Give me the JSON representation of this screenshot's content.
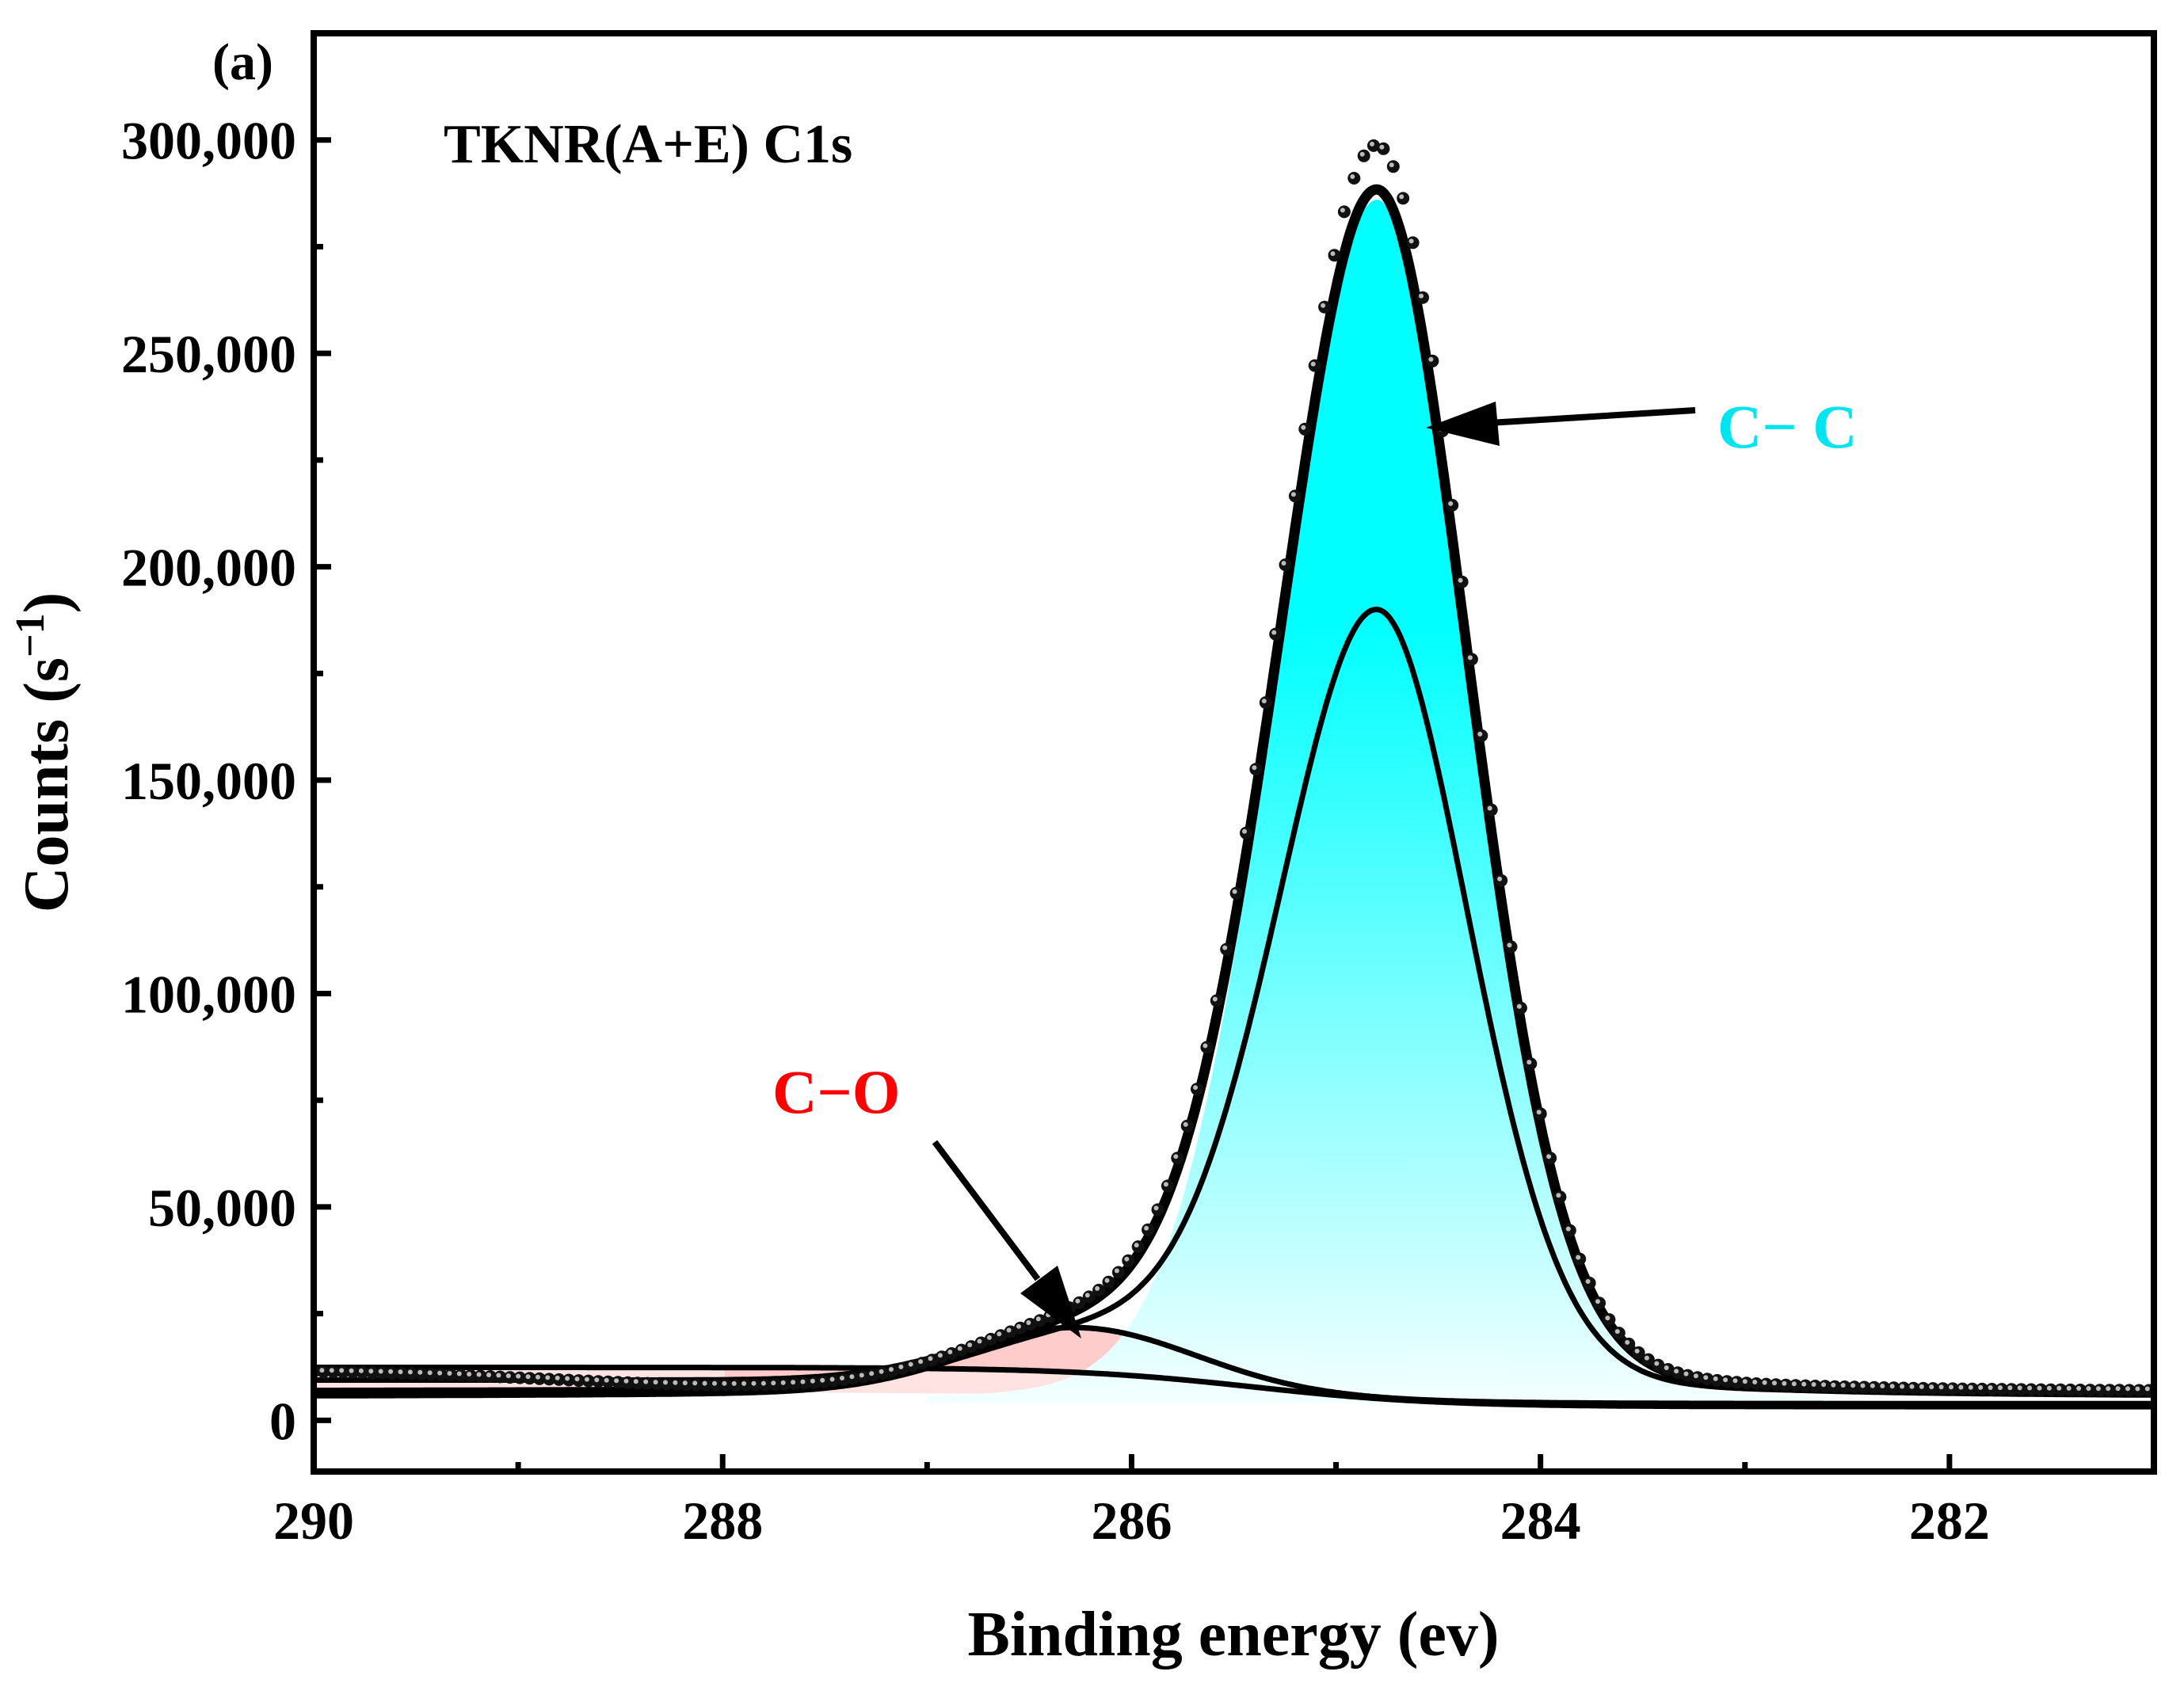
{
  "panel_label": "(a)",
  "chart_data": {
    "type": "line",
    "title": "TKNR(A+E) C1s",
    "xlabel": "Binding energy (ev)",
    "ylabel_main": "Counts (s",
    "ylabel_sup": "−1",
    "ylabel_close": ")",
    "xlim": [
      290,
      281
    ],
    "ylim": [
      -12000,
      325000
    ],
    "x_reversed": true,
    "xticks": [
      290,
      288,
      286,
      284,
      282
    ],
    "xtick_labels": [
      "290",
      "288",
      "286",
      "284",
      "282"
    ],
    "xminor": [
      289,
      287,
      285,
      283
    ],
    "yticks": [
      0,
      50000,
      100000,
      150000,
      200000,
      250000,
      300000
    ],
    "ytick_labels": [
      "0",
      "50,000",
      "100,000",
      "150,000",
      "200,000",
      "250,000",
      "300,000"
    ],
    "yminor": [
      25000,
      75000,
      125000,
      175000,
      225000,
      275000,
      325000
    ],
    "grid": false,
    "series": [
      {
        "role": "measured",
        "style": "points",
        "color": "#000000"
      },
      {
        "role": "envelope",
        "style": "line",
        "color": "#000000"
      },
      {
        "role": "peak",
        "name": "C− C",
        "center_ev": 284.8,
        "max_counts": 286000,
        "baseline_counts": 4000,
        "fill_top": "#00ffff",
        "fill_bottom": "#f4ffff",
        "label_color": "#00e5ef"
      },
      {
        "role": "peak",
        "name": "C−O",
        "center_ev": 286.25,
        "max_counts": 18000,
        "baseline_counts": 5000,
        "fill": "#ffcccc",
        "label_color": "#ff0000"
      },
      {
        "role": "background",
        "style": "line",
        "color": "#000000"
      }
    ],
    "annotations": [
      {
        "text": "C− C",
        "color": "#00e5ef"
      },
      {
        "text": "C−O",
        "color": "#ff0000"
      }
    ]
  }
}
